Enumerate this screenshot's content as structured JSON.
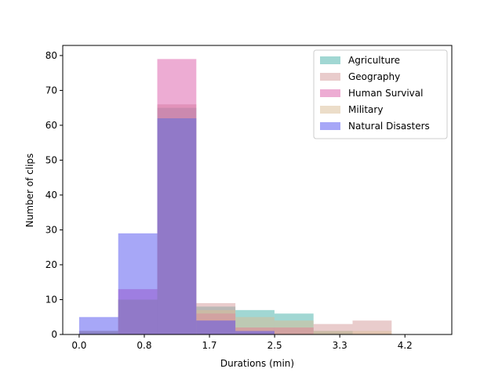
{
  "chart_data": {
    "type": "histogram",
    "xlabel": "Durations (min)",
    "ylabel": "Number of clips",
    "bins": [
      0,
      0.5,
      1.0,
      1.5,
      2.0,
      2.5,
      3.0,
      3.5,
      4.0,
      4.5
    ],
    "series": [
      {
        "name": "Agriculture",
        "color": "#44b0a8",
        "values": [
          1,
          10,
          65,
          8,
          7,
          6,
          1,
          0,
          0
        ]
      },
      {
        "name": "Geography",
        "color": "#d49a9a",
        "values": [
          1,
          10,
          66,
          9,
          2,
          2,
          3,
          4,
          0
        ]
      },
      {
        "name": "Human Survival",
        "color": "#dc5aa8",
        "values": [
          0,
          13,
          79,
          6,
          2,
          2,
          0,
          0,
          0
        ]
      },
      {
        "name": "Military",
        "color": "#d9bc94",
        "values": [
          1,
          10,
          62,
          7,
          5,
          4,
          1,
          1,
          0
        ]
      },
      {
        "name": "Natural Disasters",
        "color": "#5050f0",
        "values": [
          5,
          29,
          62,
          4,
          1,
          0,
          0,
          0,
          0
        ]
      }
    ],
    "alpha": 0.5,
    "xlim": [
      -0.21,
      4.77
    ],
    "ylim": [
      0,
      82.9
    ],
    "xticks": [
      {
        "value": 0,
        "label": "0.0"
      },
      {
        "value": 0.834,
        "label": "0.8"
      },
      {
        "value": 1.668,
        "label": "1.7"
      },
      {
        "value": 2.502,
        "label": "2.5"
      },
      {
        "value": 3.336,
        "label": "3.3"
      },
      {
        "value": 4.17,
        "label": "4.2"
      }
    ],
    "yticks": [
      0,
      10,
      20,
      30,
      40,
      50,
      60,
      70,
      80
    ],
    "legend": "upper right"
  }
}
